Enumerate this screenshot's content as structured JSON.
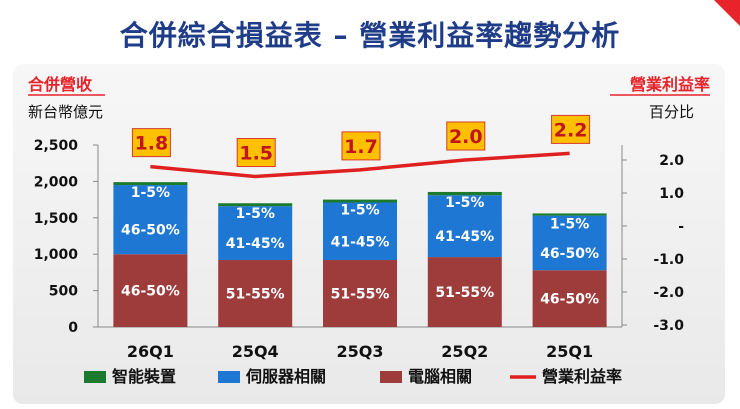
{
  "page_title": "合併綜合損益表 – 營業利益率趨勢分析",
  "colors": {
    "title": "#1f3c88",
    "smart_devices": "#1b7a2e",
    "server": "#1f77d4",
    "pc": "#9e3b3b",
    "margin_line": "#e02020",
    "label_box": "#ffc000",
    "accent_red": "#e8232a"
  },
  "chart_data": {
    "type": "bar",
    "stacked": true,
    "left_axis_title": "合併營收",
    "left_axis_unit": "新台幣億元",
    "right_axis_title": "營業利益率",
    "right_axis_unit": "百分比",
    "categories": [
      "26Q1",
      "25Q4",
      "25Q3",
      "25Q2",
      "25Q1"
    ],
    "left_ticks": [
      "2,500",
      "2,000",
      "1,500",
      "1,000",
      "500",
      "0"
    ],
    "right_ticks": [
      "2.0",
      "1.0",
      "-",
      "-1.0",
      "-2.0",
      "-3.0"
    ],
    "ylim": [
      0,
      2500
    ],
    "y2lim": [
      -3,
      2.5
    ],
    "series": [
      {
        "name": "電腦相關",
        "values": [
          1000,
          920,
          920,
          960,
          780
        ],
        "labels": [
          "46-50%",
          "51-55%",
          "51-55%",
          "51-55%",
          "46-50%"
        ]
      },
      {
        "name": "伺服器相關",
        "values": [
          950,
          740,
          790,
          850,
          750
        ],
        "labels": [
          "46-50%",
          "41-45%",
          "41-45%",
          "41-45%",
          "46-50%"
        ]
      },
      {
        "name": "智能裝置",
        "values": [
          40,
          40,
          40,
          45,
          30
        ],
        "labels": [
          "1-5%",
          "1-5%",
          "1-5%",
          "1-5%",
          "1-5%"
        ]
      }
    ],
    "line_series": {
      "name": "營業利益率",
      "values": [
        1.8,
        1.5,
        1.7,
        2.0,
        2.2
      ],
      "labels": [
        "1.8",
        "1.5",
        "1.7",
        "2.0",
        "2.2"
      ]
    },
    "legend": [
      "智能裝置",
      "伺服器相關",
      "電腦相關",
      "營業利益率"
    ]
  }
}
